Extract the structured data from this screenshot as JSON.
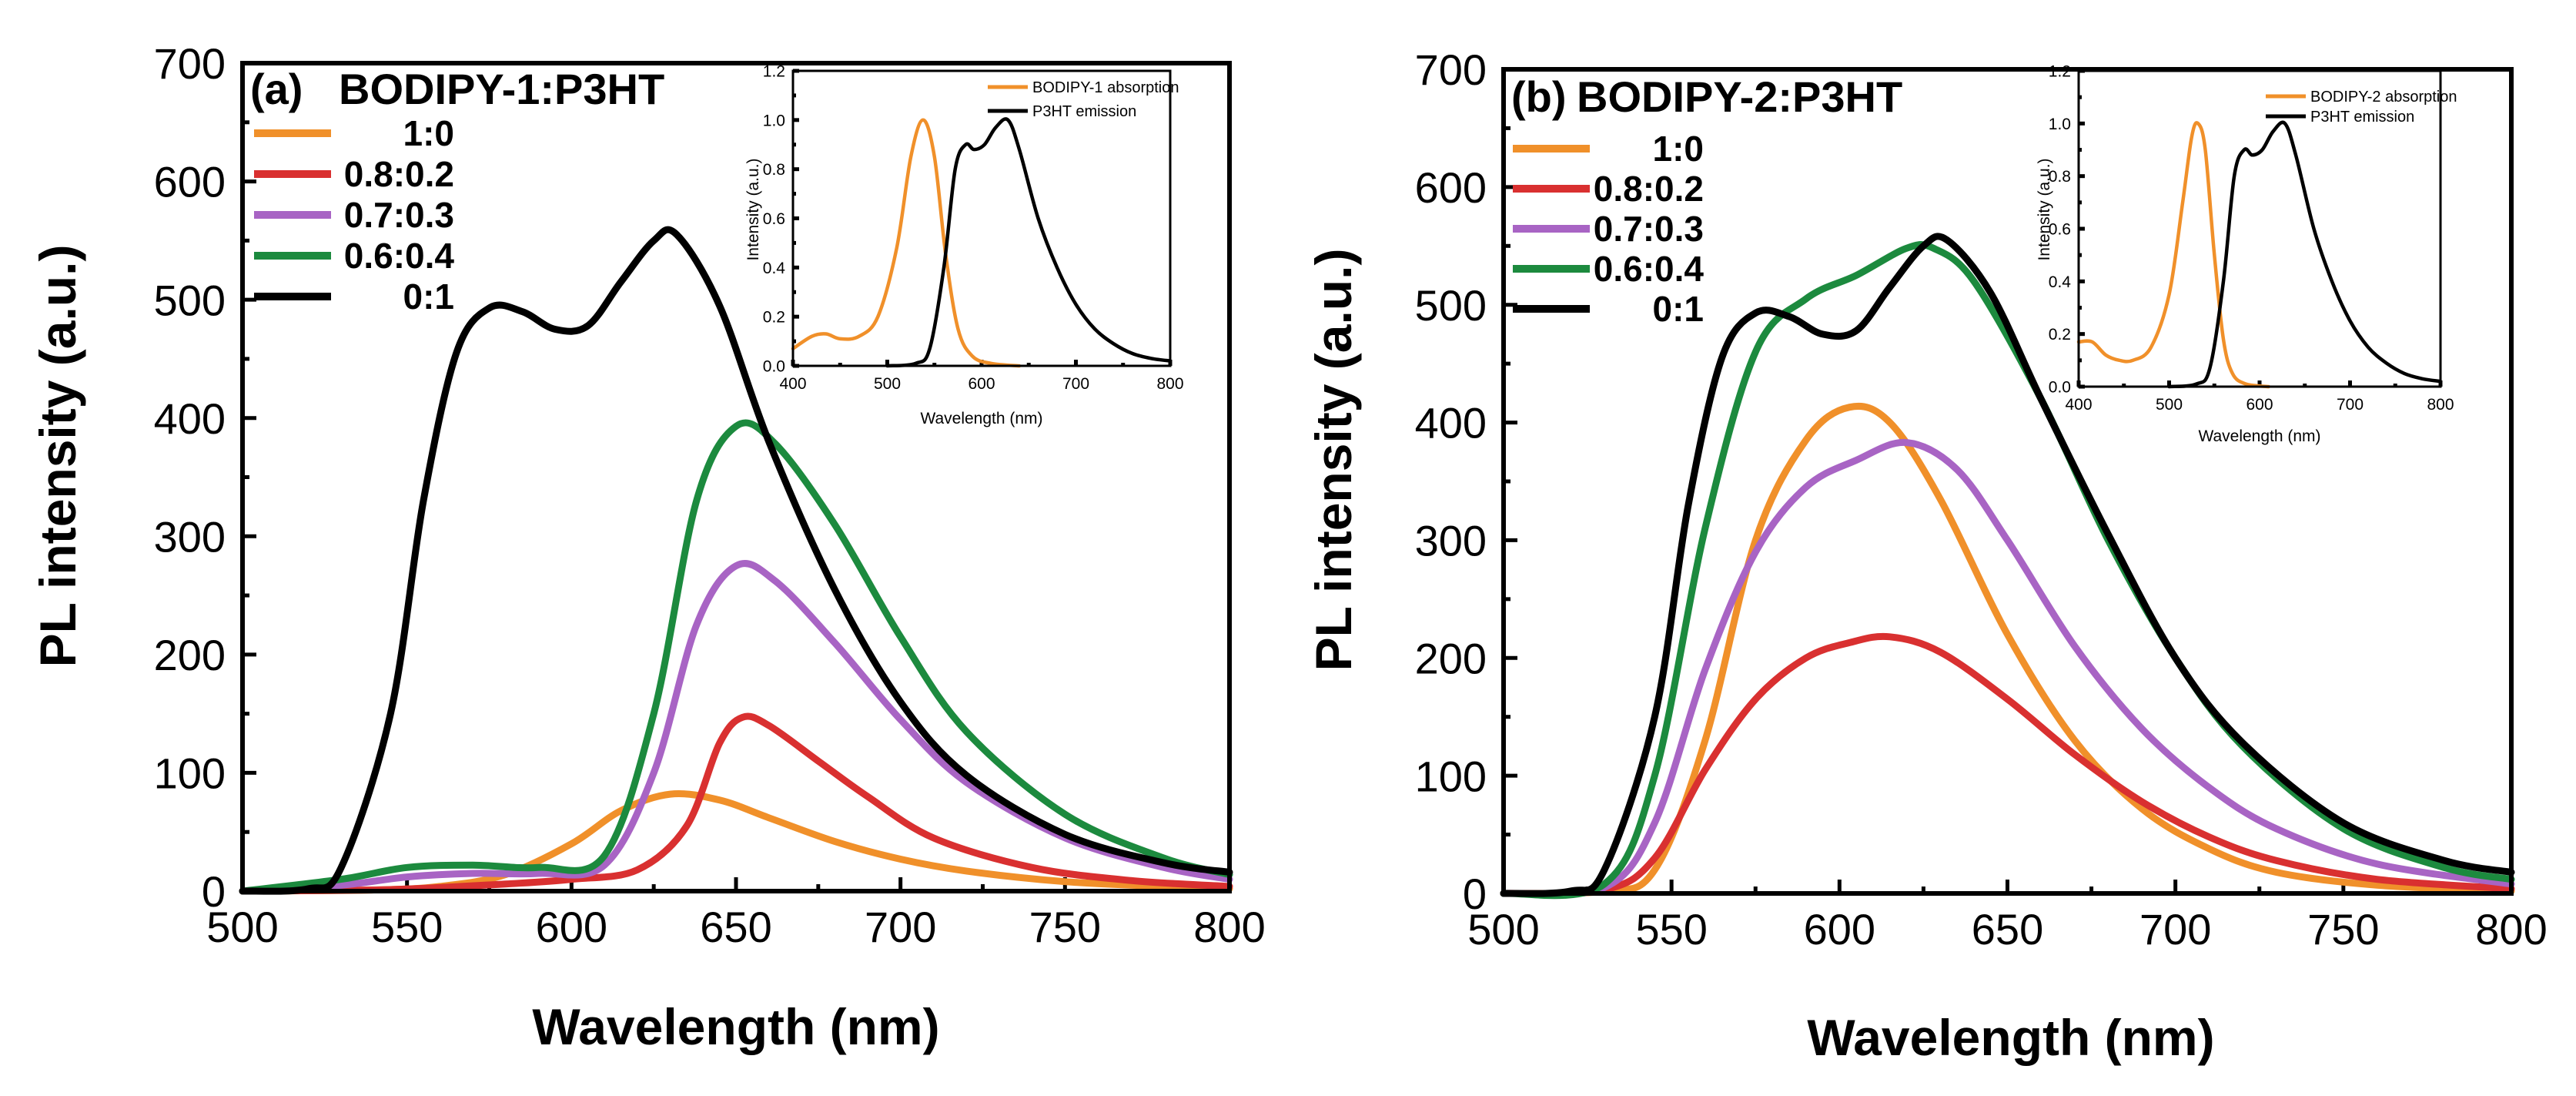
{
  "figure": {
    "panels": [
      {
        "label": "(a)",
        "title": "BODIPY-1:P3HT",
        "xlabel": "Wavelength (nm)",
        "ylabel": "PL intensity (a.u.)",
        "x_ticks": [
          "500",
          "550",
          "600",
          "650",
          "700",
          "750",
          "800"
        ],
        "y_ticks": [
          "0",
          "100",
          "200",
          "300",
          "400",
          "500",
          "600",
          "700"
        ],
        "inset": {
          "xlabel": "Wavelength (nm)",
          "ylabel": "Intensity (a.u.)",
          "x_ticks": [
            "400",
            "500",
            "600",
            "700",
            "800"
          ],
          "y_ticks": [
            "0.0",
            "0.2",
            "0.4",
            "0.6",
            "0.8",
            "1.0",
            "1.2"
          ],
          "legend": [
            "BODIPY-1 absorption",
            "P3HT emission"
          ]
        }
      },
      {
        "label": "(b)",
        "title": "BODIPY-2:P3HT",
        "xlabel": "Wavelength (nm)",
        "ylabel": "PL intensity (a.u.)",
        "x_ticks": [
          "500",
          "550",
          "600",
          "650",
          "700",
          "750",
          "800"
        ],
        "y_ticks": [
          "0",
          "100",
          "200",
          "300",
          "400",
          "500",
          "600",
          "700"
        ],
        "inset": {
          "xlabel": "Wavelength (nm)",
          "ylabel": "Intensity (a.u.)",
          "x_ticks": [
            "400",
            "500",
            "600",
            "700",
            "800"
          ],
          "y_ticks": [
            "0.0",
            "0.2",
            "0.4",
            "0.6",
            "0.8",
            "1.0",
            "1.2"
          ],
          "legend": [
            "BODIPY-2 absorption",
            "P3HT emission"
          ]
        }
      }
    ]
  },
  "chart_data": [
    {
      "type": "line",
      "title": "BODIPY-1:P3HT",
      "panel": "(a)",
      "xlabel": "Wavelength (nm)",
      "ylabel": "PL intensity (a.u.)",
      "xlim": [
        500,
        800
      ],
      "ylim": [
        0,
        700
      ],
      "legend_position": "top-left",
      "series": [
        {
          "name": "1:0",
          "color": "#F0902A",
          "x": [
            500,
            540,
            560,
            580,
            600,
            615,
            630,
            645,
            660,
            680,
            700,
            720,
            750,
            780,
            800
          ],
          "y": [
            0,
            1,
            4,
            14,
            40,
            68,
            82,
            77,
            62,
            42,
            27,
            17,
            8,
            4,
            2
          ]
        },
        {
          "name": "0.8:0.2",
          "color": "#D93030",
          "x": [
            500,
            540,
            560,
            580,
            600,
            620,
            635,
            645,
            652,
            660,
            675,
            690,
            710,
            740,
            770,
            800
          ],
          "y": [
            0,
            1,
            3,
            6,
            10,
            18,
            55,
            125,
            147,
            140,
            110,
            80,
            45,
            20,
            9,
            4
          ]
        },
        {
          "name": "0.7:0.3",
          "color": "#A864C4",
          "x": [
            500,
            530,
            550,
            570,
            590,
            610,
            625,
            638,
            650,
            662,
            680,
            700,
            720,
            750,
            780,
            800
          ],
          "y": [
            0,
            5,
            12,
            15,
            15,
            22,
            100,
            225,
            275,
            262,
            210,
            145,
            92,
            45,
            20,
            10
          ]
        },
        {
          "name": "0.6:0.4",
          "color": "#1C8A3E",
          "x": [
            500,
            530,
            550,
            570,
            590,
            610,
            625,
            638,
            650,
            662,
            680,
            700,
            720,
            750,
            780,
            800
          ],
          "y": [
            0,
            10,
            20,
            22,
            20,
            30,
            150,
            330,
            393,
            378,
            310,
            215,
            135,
            65,
            28,
            14
          ]
        },
        {
          "name": "0:1",
          "color": "#000000",
          "x": [
            500,
            520,
            530,
            545,
            555,
            565,
            575,
            585,
            595,
            605,
            615,
            625,
            632,
            645,
            660,
            680,
            700,
            720,
            750,
            780,
            800
          ],
          "y": [
            0,
            2,
            20,
            150,
            330,
            455,
            493,
            490,
            475,
            478,
            515,
            550,
            555,
            495,
            380,
            255,
            160,
            98,
            48,
            24,
            16
          ]
        }
      ],
      "inset": {
        "type": "line",
        "xlabel": "Wavelength (nm)",
        "ylabel": "Intensity (a.u.)",
        "xlim": [
          400,
          800
        ],
        "ylim": [
          0,
          1.2
        ],
        "legend_position": "top-right",
        "series": [
          {
            "name": "BODIPY-1 absorption",
            "color": "#F0902A",
            "x": [
              400,
              420,
              435,
              450,
              470,
              490,
              510,
              525,
              538,
              550,
              562,
              575,
              590,
              610,
              640
            ],
            "y": [
              0.07,
              0.12,
              0.13,
              0.11,
              0.12,
              0.2,
              0.48,
              0.85,
              1.0,
              0.85,
              0.45,
              0.15,
              0.04,
              0.01,
              0.0
            ]
          },
          {
            "name": "P3HT emission",
            "color": "#000000",
            "x": [
              500,
              530,
              545,
              560,
              572,
              583,
              592,
              603,
              615,
              628,
              640,
              660,
              680,
              700,
              720,
              740,
              760,
              780,
              800
            ],
            "y": [
              0.0,
              0.01,
              0.07,
              0.4,
              0.8,
              0.9,
              0.88,
              0.9,
              0.97,
              1.0,
              0.88,
              0.6,
              0.4,
              0.25,
              0.15,
              0.09,
              0.05,
              0.03,
              0.02
            ]
          }
        ]
      }
    },
    {
      "type": "line",
      "title": "BODIPY-2:P3HT",
      "panel": "(b)",
      "xlabel": "Wavelength (nm)",
      "ylabel": "PL intensity (a.u.)",
      "xlim": [
        500,
        800
      ],
      "ylim": [
        0,
        700
      ],
      "legend_position": "top-left",
      "series": [
        {
          "name": "1:0",
          "color": "#F0902A",
          "x": [
            500,
            530,
            545,
            560,
            575,
            590,
            603,
            615,
            630,
            650,
            670,
            690,
            710,
            730,
            760,
            800
          ],
          "y": [
            0,
            2,
            20,
            130,
            300,
            385,
            413,
            400,
            335,
            220,
            130,
            72,
            38,
            18,
            7,
            2
          ]
        },
        {
          "name": "0.8:0.2",
          "color": "#D93030",
          "x": [
            500,
            530,
            545,
            560,
            575,
            590,
            603,
            615,
            630,
            650,
            670,
            690,
            710,
            730,
            760,
            800
          ],
          "y": [
            0,
            3,
            30,
            105,
            165,
            200,
            213,
            218,
            205,
            165,
            118,
            78,
            48,
            28,
            12,
            4
          ]
        },
        {
          "name": "0.7:0.3",
          "color": "#A864C4",
          "x": [
            500,
            530,
            545,
            560,
            575,
            590,
            605,
            620,
            635,
            650,
            670,
            690,
            710,
            730,
            760,
            800
          ],
          "y": [
            0,
            5,
            60,
            190,
            290,
            345,
            368,
            383,
            360,
            300,
            210,
            140,
            90,
            55,
            25,
            8
          ]
        },
        {
          "name": "0.6:0.4",
          "color": "#1C8A3E",
          "x": [
            500,
            530,
            545,
            560,
            575,
            590,
            605,
            620,
            628,
            640,
            660,
            680,
            700,
            720,
            750,
            780,
            800
          ],
          "y": [
            0,
            8,
            100,
            310,
            460,
            505,
            525,
            548,
            548,
            520,
            420,
            300,
            200,
            125,
            55,
            22,
            12
          ]
        },
        {
          "name": "0:1",
          "color": "#000000",
          "x": [
            500,
            520,
            530,
            545,
            555,
            565,
            575,
            585,
            595,
            605,
            615,
            625,
            632,
            645,
            660,
            680,
            700,
            720,
            750,
            780,
            800
          ],
          "y": [
            0,
            2,
            20,
            150,
            330,
            455,
            493,
            490,
            475,
            478,
            515,
            550,
            555,
            510,
            420,
            305,
            200,
            128,
            60,
            28,
            18
          ]
        }
      ],
      "inset": {
        "type": "line",
        "xlabel": "Wavelength (nm)",
        "ylabel": "Intensity (a.u.)",
        "xlim": [
          400,
          800
        ],
        "ylim": [
          0,
          1.2
        ],
        "legend_position": "top-right",
        "series": [
          {
            "name": "BODIPY-2 absorption",
            "color": "#F0902A",
            "x": [
              400,
              415,
              430,
              445,
              460,
              480,
              500,
              515,
              525,
              532,
              540,
              550,
              560,
              570,
              585,
              610
            ],
            "y": [
              0.17,
              0.17,
              0.12,
              0.1,
              0.1,
              0.15,
              0.35,
              0.7,
              0.95,
              1.0,
              0.9,
              0.5,
              0.18,
              0.05,
              0.01,
              0.0
            ]
          },
          {
            "name": "P3HT emission",
            "color": "#000000",
            "x": [
              500,
              530,
              545,
              560,
              572,
              583,
              592,
              603,
              615,
              628,
              640,
              660,
              680,
              700,
              720,
              740,
              760,
              780,
              800
            ],
            "y": [
              0.0,
              0.01,
              0.07,
              0.4,
              0.8,
              0.9,
              0.88,
              0.9,
              0.97,
              1.0,
              0.88,
              0.6,
              0.4,
              0.25,
              0.15,
              0.09,
              0.05,
              0.03,
              0.02
            ]
          }
        ]
      }
    }
  ]
}
